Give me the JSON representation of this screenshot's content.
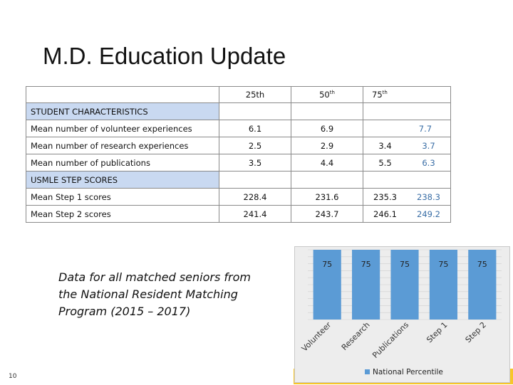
{
  "slide": {
    "title": "M.D. Education Update",
    "page_number": "10",
    "caption": "Data for all matched seniors from the National Resident Matching Program (2015 – 2017)"
  },
  "table": {
    "header": {
      "p25": "25th",
      "p50": "50",
      "p75": "75"
    },
    "sections": [
      {
        "title": "STUDENT CHARACTERISTICS",
        "rows": [
          {
            "label": "Mean number of volunteer experiences",
            "p25": "6.1",
            "p50": "6.9",
            "p75a": "",
            "p75b": "7.7"
          },
          {
            "label": "Mean number of research experiences",
            "p25": "2.5",
            "p50": "2.9",
            "p75a": "3.4",
            "p75b": "3.7"
          },
          {
            "label": "Mean number of publications",
            "p25": "3.5",
            "p50": "4.4",
            "p75a": "5.5",
            "p75b": "6.3"
          }
        ]
      },
      {
        "title": "USMLE STEP SCORES",
        "rows": [
          {
            "label": "Mean Step 1 scores",
            "p25": "228.4",
            "p50": "231.6",
            "p75a": "235.3",
            "p75b": "238.3"
          },
          {
            "label": "Mean Step 2 scores",
            "p25": "241.4",
            "p50": "243.7",
            "p75a": "246.1",
            "p75b": "249.2"
          }
        ]
      }
    ]
  },
  "chart_data": {
    "type": "bar",
    "categories": [
      "Volunteer",
      "Research",
      "Publications",
      "Step 1",
      "Step 2"
    ],
    "series": [
      {
        "name": "National Percentile",
        "values": [
          75,
          75,
          75,
          75,
          75
        ]
      }
    ],
    "data_labels": [
      "75",
      "75",
      "75",
      "75",
      "75"
    ],
    "ylim": [
      0,
      75
    ],
    "grid": true,
    "legend": "bottom",
    "bar_color": "#5b9bd5"
  }
}
